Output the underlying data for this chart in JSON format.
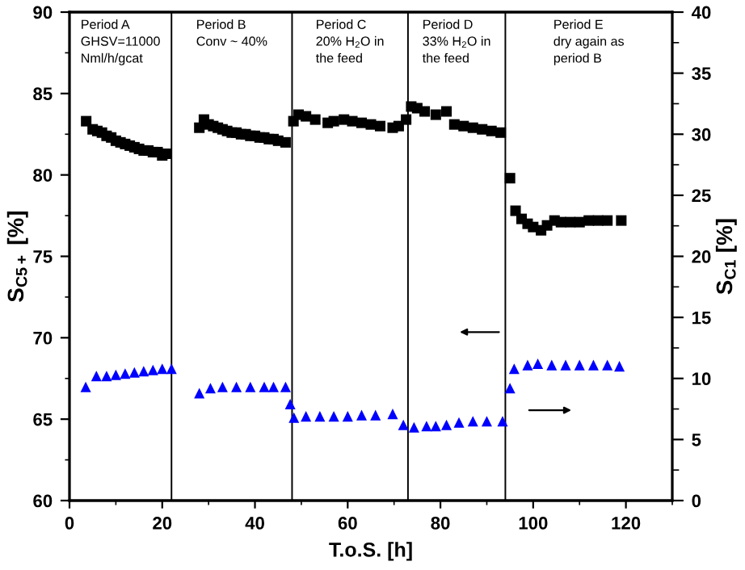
{
  "chart_data": {
    "type": "scatter",
    "xlabel": "T.o.S. [h]",
    "ylabel": "S$_{C5+}$ [%]",
    "y2label": "S$_{C1}$ [%]",
    "xlim": [
      0,
      130
    ],
    "xticks": [
      0,
      20,
      40,
      60,
      80,
      100,
      120
    ],
    "ylim": [
      60,
      90
    ],
    "yticks": [
      60,
      65,
      70,
      75,
      80,
      85,
      90
    ],
    "y2lim": [
      0,
      40
    ],
    "y2ticks": [
      0,
      5,
      10,
      15,
      20,
      25,
      30,
      35,
      40
    ],
    "grid": false,
    "series": [
      {
        "color": "#000000",
        "marker": "square",
        "x": [
          3.6,
          5,
          6,
          7,
          8,
          9,
          10,
          11,
          12,
          13,
          14,
          15,
          16,
          17,
          18,
          19,
          20,
          21,
          28,
          29,
          30,
          31,
          32,
          33,
          34,
          35,
          36,
          37,
          38,
          39,
          40,
          41,
          42,
          43,
          44,
          45,
          46.6,
          48.3,
          49.4,
          51,
          53,
          55.7,
          57,
          59.2,
          61,
          63,
          65,
          67,
          69.7,
          71,
          72.6,
          73.7,
          75,
          76.6,
          79,
          81.3,
          83,
          85,
          87,
          89,
          91,
          93,
          95,
          96.2,
          97.5,
          98.8,
          100,
          101.7,
          103,
          104.6,
          106,
          108,
          110,
          112,
          114,
          116,
          119
        ],
        "values": [
          83.3,
          82.8,
          82.7,
          82.6,
          82.4,
          82.3,
          82.1,
          82.0,
          81.9,
          81.8,
          81.7,
          81.6,
          81.5,
          81.5,
          81.4,
          81.4,
          81.2,
          81.3,
          82.9,
          83.4,
          83.1,
          83.0,
          82.9,
          82.8,
          82.7,
          82.6,
          82.6,
          82.5,
          82.5,
          82.4,
          82.4,
          82.3,
          82.3,
          82.2,
          82.2,
          82.1,
          82.0,
          83.3,
          83.7,
          83.6,
          83.4,
          83.2,
          83.3,
          83.4,
          83.3,
          83.2,
          83.1,
          83.0,
          82.9,
          83.0,
          83.4,
          84.2,
          84.1,
          83.9,
          83.7,
          83.9,
          83.1,
          83.0,
          82.9,
          82.8,
          82.7,
          82.6,
          79.8,
          77.8,
          77.3,
          77.0,
          76.8,
          76.6,
          76.9,
          77.2,
          77.1,
          77.1,
          77.1,
          77.2,
          77.2,
          77.2,
          77.2
        ]
      },
      {
        "color": "#0000ff",
        "marker": "triangle",
        "axis": "y2",
        "x": [
          3.5,
          5.8,
          8,
          10,
          12,
          14,
          16,
          18,
          20,
          22,
          28,
          30.4,
          33,
          36,
          39,
          42,
          44,
          46.6,
          47.6,
          48.4,
          51,
          54,
          57,
          60,
          63,
          66,
          69.7,
          72,
          74.3,
          77,
          79,
          81.3,
          84,
          87,
          90,
          93.4,
          95,
          95.9,
          98.8,
          101,
          104,
          107,
          110,
          113,
          116,
          118.6
        ],
        "values": [
          9.3,
          10.2,
          10.2,
          10.3,
          10.4,
          10.5,
          10.6,
          10.7,
          10.8,
          10.8,
          8.8,
          9.2,
          9.3,
          9.3,
          9.3,
          9.3,
          9.3,
          9.3,
          7.9,
          6.8,
          6.9,
          6.9,
          6.9,
          6.9,
          7.0,
          7.0,
          7.1,
          6.2,
          6.0,
          6.1,
          6.1,
          6.2,
          6.4,
          6.5,
          6.5,
          6.5,
          9.2,
          10.8,
          11.1,
          11.2,
          11.1,
          11.1,
          11.1,
          11.1,
          11.1,
          11.0
        ]
      }
    ],
    "ref_lines": [
      {
        "axis": "x",
        "value": 22,
        "label": null
      },
      {
        "axis": "x",
        "value": 48,
        "label": null
      },
      {
        "axis": "x",
        "value": 73,
        "label": null
      },
      {
        "axis": "x",
        "value": 94,
        "label": null
      }
    ],
    "annotations": [
      "Period A\nGHSV=11000\nNml/h/gcat",
      "Period B\nConv ~ 40%",
      "Period C\n20% H$_{2}$O in\nthe feed",
      "Period D\n33% H$_{2}$O in\nthe feed",
      "Period E\ndry again as\nperiod B"
    ]
  }
}
